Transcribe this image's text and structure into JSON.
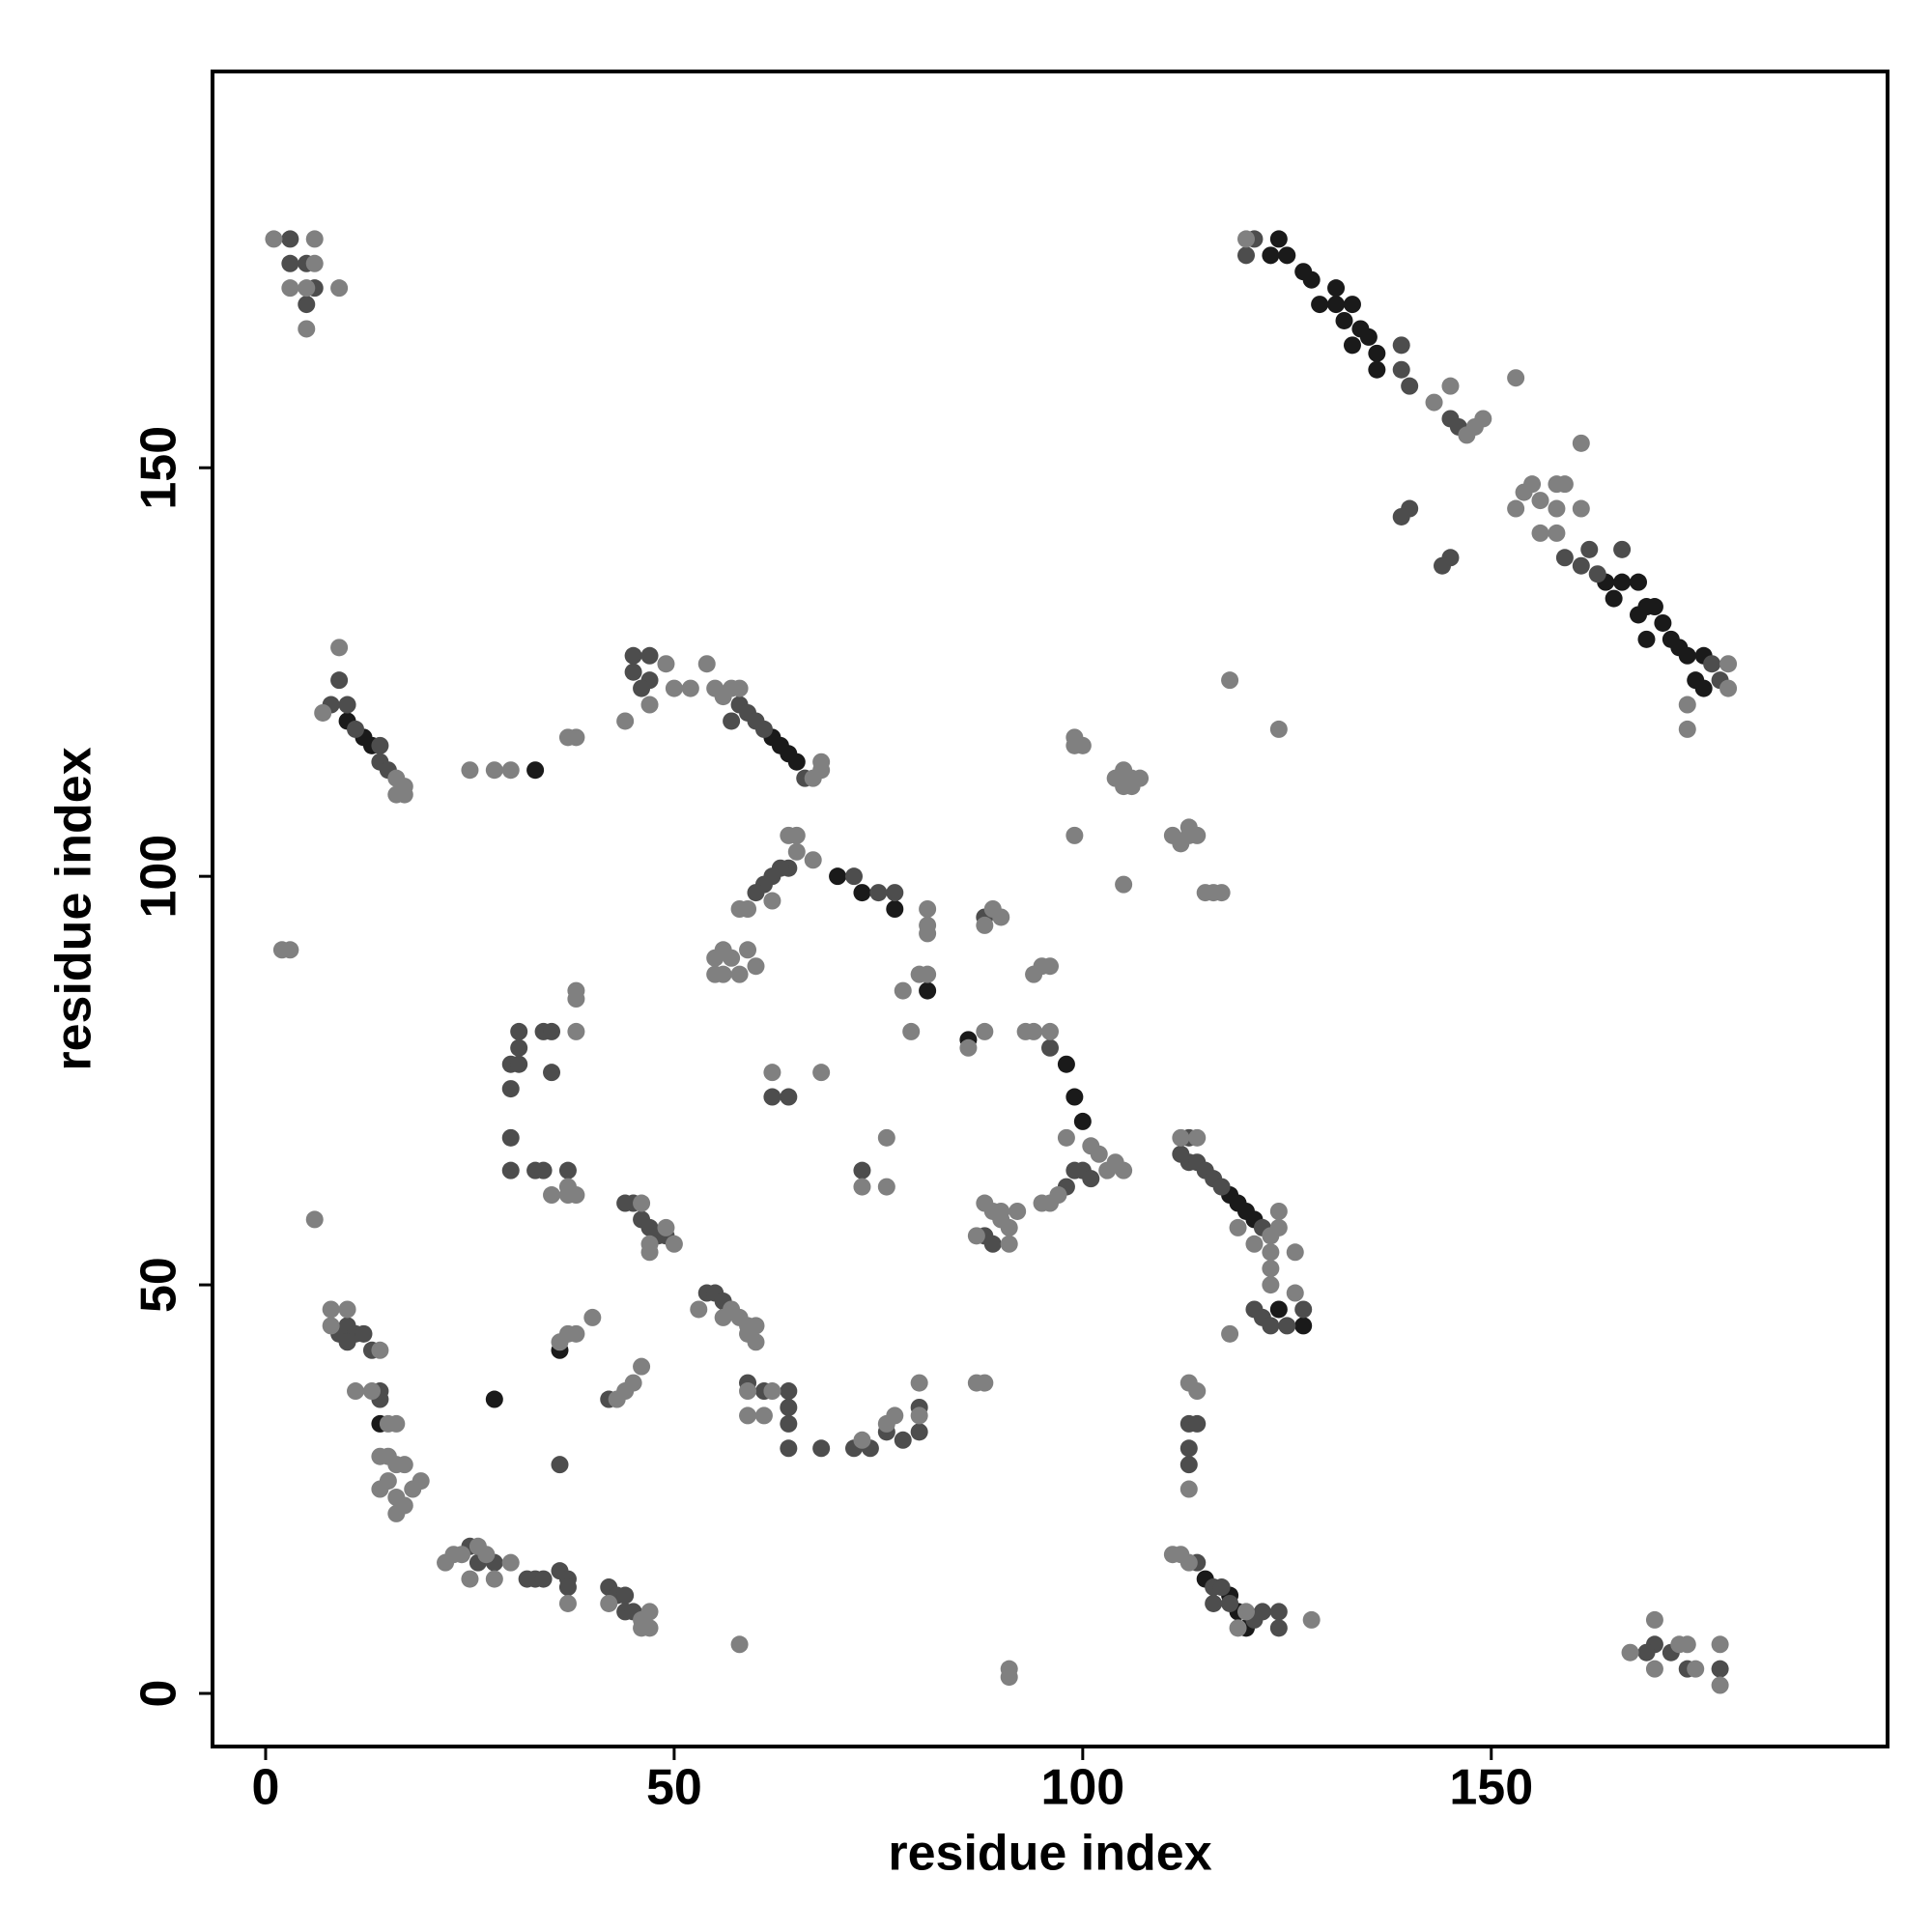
{
  "chart_data": {
    "type": "scatter",
    "x_label": "residue index",
    "y_label": "residue index",
    "xlim": [
      -6.5,
      198.5
    ],
    "ylim": [
      -6.5,
      198.5
    ],
    "xticks": [
      0,
      50,
      100,
      150
    ],
    "yticks": [
      0,
      50,
      100,
      150
    ],
    "grid": false,
    "series": [
      {
        "color": "#1a1a1a",
        "x": [
          124,
          123,
          125,
          127,
          128,
          131,
          129,
          131,
          133,
          132,
          134,
          133,
          135,
          136,
          136,
          168,
          168,
          169,
          170,
          171,
          169,
          172,
          173,
          174,
          176,
          175,
          176,
          164,
          165,
          166,
          62,
          63,
          64,
          65,
          70,
          73,
          77,
          81,
          86,
          98,
          99,
          100,
          118,
          119,
          120,
          121,
          127,
          124,
          10,
          13,
          12,
          33,
          28,
          14,
          115,
          118,
          119,
          120,
          36
        ],
        "y": [
          178,
          176,
          176,
          174,
          173,
          172,
          170,
          170,
          170,
          168,
          167,
          165,
          166,
          164,
          162,
          136,
          132,
          133,
          133,
          131,
          129,
          129,
          128,
          127,
          127,
          124,
          123,
          136,
          134,
          136,
          117,
          116,
          115,
          114,
          100,
          98,
          96,
          86,
          80,
          77,
          73,
          70,
          61,
          60,
          59,
          58,
          45,
          47,
          119,
          116,
          117,
          113,
          36,
          33,
          14,
          12,
          10,
          8,
          42
        ]
      },
      {
        "color": "#4d4d4d",
        "x": [
          121,
          120,
          139,
          139,
          140,
          145,
          146,
          140,
          139,
          145,
          144,
          159,
          162,
          161,
          163,
          166,
          177,
          178,
          3,
          5,
          6,
          5,
          3,
          9,
          10,
          8,
          11,
          14,
          14,
          15,
          45,
          47,
          45,
          47,
          46,
          58,
          59,
          60,
          61,
          57,
          66,
          64,
          63,
          62,
          61,
          60,
          72,
          75,
          77,
          31,
          34,
          35,
          31,
          30,
          31,
          35,
          30,
          30,
          30,
          33,
          34,
          37,
          64,
          62,
          73,
          88,
          96,
          99,
          100,
          101,
          98,
          113,
          112,
          113,
          114,
          115,
          116,
          117,
          122,
          121,
          122,
          123,
          125,
          127,
          45,
          44,
          46,
          47,
          48,
          49,
          54,
          55,
          56,
          9,
          10,
          11,
          12,
          13,
          10,
          14,
          14,
          42,
          36,
          59,
          61,
          64,
          64,
          64,
          64,
          68,
          72,
          74,
          76,
          78,
          80,
          80,
          113,
          114,
          113,
          113,
          25,
          26,
          28,
          33,
          32,
          34,
          36,
          37,
          37,
          42,
          43,
          44,
          44,
          45,
          114,
          116,
          117,
          118,
          121,
          122,
          124,
          124,
          116,
          170,
          172,
          174,
          178,
          169,
          88,
          89
        ],
        "y": [
          178,
          176,
          165,
          162,
          160,
          156,
          155,
          145,
          144,
          139,
          138,
          139,
          140,
          138,
          137,
          140,
          126,
          124,
          178,
          175,
          172,
          170,
          175,
          124,
          121,
          121,
          118,
          116,
          114,
          113,
          127,
          127,
          125,
          124,
          123,
          121,
          120,
          119,
          118,
          119,
          112,
          101,
          101,
          100,
          99,
          98,
          100,
          98,
          98,
          81,
          81,
          81,
          79,
          77,
          77,
          76,
          74,
          68,
          64,
          64,
          64,
          64,
          73,
          73,
          64,
          95,
          79,
          64,
          64,
          63,
          62,
          68,
          66,
          65,
          65,
          64,
          63,
          62,
          57,
          47,
          46,
          45,
          45,
          47,
          60,
          60,
          58,
          57,
          56,
          56,
          49,
          49,
          48,
          44,
          45,
          44,
          44,
          42,
          43,
          36,
          37,
          36,
          28,
          38,
          37,
          37,
          35,
          33,
          30,
          30,
          30,
          30,
          32,
          31,
          32,
          35,
          33,
          33,
          30,
          28,
          18,
          16,
          16,
          14,
          14,
          14,
          15,
          14,
          13,
          13,
          12,
          12,
          10,
          10,
          16,
          13,
          13,
          11,
          9,
          10,
          10,
          8,
          11,
          6,
          5,
          3,
          3,
          5,
          56,
          55
        ]
      },
      {
        "color": "#808080",
        "x": [
          1,
          6,
          5,
          9,
          5,
          3,
          6,
          120,
          143,
          145,
          147,
          148,
          149,
          153,
          154,
          155,
          156,
          153,
          156,
          158,
          159,
          158,
          158,
          161,
          161,
          179,
          179,
          174,
          174,
          9,
          7,
          16,
          17,
          16,
          17,
          25,
          28,
          30,
          37,
          38,
          49,
          44,
          50,
          52,
          54,
          55,
          56,
          57,
          58,
          67,
          68,
          68,
          47,
          65,
          64,
          65,
          59,
          58,
          62,
          67,
          81,
          81,
          81,
          55,
          56,
          57,
          59,
          60,
          56,
          58,
          55,
          2,
          3,
          38,
          38,
          38,
          37,
          35,
          37,
          38,
          62,
          68,
          76,
          73,
          76,
          79,
          80,
          78,
          81,
          86,
          88,
          89,
          90,
          88,
          94,
          95,
          96,
          93,
          94,
          96,
          98,
          101,
          102,
          97,
          96,
          95,
          104,
          105,
          103,
          87,
          88,
          89,
          90,
          91,
          91,
          90,
          92,
          99,
          99,
          100,
          99,
          105,
          104,
          106,
          107,
          106,
          105,
          105,
          111,
          112,
          113,
          113,
          114,
          115,
          116,
          117,
          118,
          124,
          112,
          114,
          123,
          124,
          124,
          119,
          121,
          123,
          123,
          123,
          126,
          126,
          118,
          46,
          49,
          47,
          47,
          50,
          53,
          56,
          57,
          58,
          59,
          60,
          59,
          60,
          37,
          38,
          40,
          36,
          8,
          10,
          8,
          14,
          11,
          13,
          15,
          16,
          14,
          15,
          16,
          17,
          14,
          15,
          16,
          17,
          18,
          19,
          16,
          43,
          44,
          45,
          46,
          59,
          62,
          59,
          61,
          73,
          76,
          77,
          80,
          80,
          87,
          88,
          113,
          114,
          113,
          22,
          23,
          24,
          26,
          25,
          27,
          28,
          30,
          37,
          42,
          46,
          46,
          47,
          47,
          58,
          91,
          91,
          111,
          112,
          113,
          120,
          119,
          128,
          167,
          170,
          170,
          173,
          174,
          175,
          178,
          178,
          6
        ],
        "y": [
          178,
          178,
          172,
          172,
          167,
          172,
          175,
          178,
          158,
          160,
          154,
          155,
          156,
          161,
          147,
          148,
          146,
          145,
          142,
          148,
          148,
          145,
          142,
          153,
          145,
          126,
          123,
          121,
          118,
          128,
          120,
          112,
          111,
          110,
          110,
          113,
          113,
          113,
          117,
          117,
          126,
          119,
          123,
          123,
          126,
          123,
          122,
          123,
          123,
          112,
          113,
          114,
          121,
          105,
          105,
          103,
          96,
          96,
          97,
          102,
          96,
          94,
          93,
          90,
          91,
          90,
          91,
          89,
          88,
          88,
          88,
          91,
          91,
          86,
          85,
          81,
          62,
          61,
          61,
          61,
          76,
          76,
          68,
          62,
          62,
          81,
          88,
          86,
          88,
          79,
          81,
          96,
          95,
          94,
          88,
          89,
          89,
          81,
          81,
          81,
          68,
          67,
          66,
          61,
          60,
          60,
          65,
          64,
          64,
          56,
          60,
          59,
          59,
          57,
          55,
          58,
          59,
          117,
          116,
          116,
          105,
          113,
          112,
          112,
          112,
          111,
          111,
          99,
          105,
          104,
          106,
          105,
          105,
          98,
          98,
          98,
          124,
          118,
          68,
          68,
          56,
          57,
          59,
          57,
          55,
          54,
          52,
          50,
          54,
          49,
          44,
          60,
          57,
          54,
          55,
          55,
          47,
          46,
          47,
          46,
          45,
          45,
          44,
          43,
          44,
          44,
          46,
          43,
          47,
          47,
          45,
          42,
          37,
          37,
          33,
          33,
          29,
          29,
          28,
          28,
          25,
          26,
          24,
          23,
          25,
          26,
          22,
          36,
          37,
          38,
          40,
          37,
          37,
          34,
          34,
          31,
          33,
          34,
          38,
          34,
          38,
          38,
          38,
          37,
          25,
          16,
          17,
          17,
          18,
          14,
          17,
          14,
          16,
          11,
          11,
          9,
          8,
          10,
          8,
          6,
          3,
          2,
          17,
          17,
          16,
          10,
          8,
          9,
          5,
          9,
          3,
          6,
          6,
          3,
          6,
          1,
          58
        ]
      }
    ]
  }
}
